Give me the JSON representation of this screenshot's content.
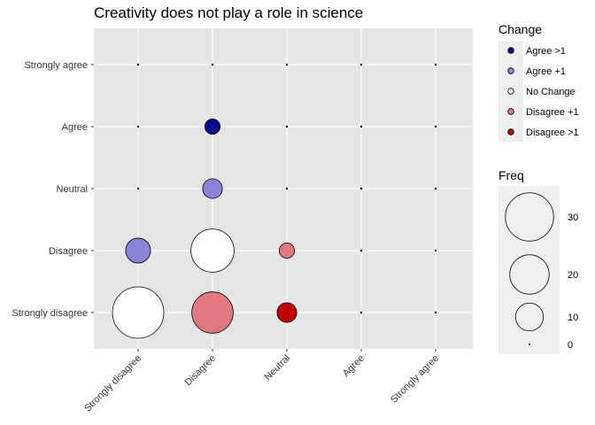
{
  "chart_data": {
    "type": "scatter",
    "title": "Creativity does not play a role in science",
    "xlabel": "",
    "ylabel": "",
    "x_categories": [
      "Strongly disagree",
      "Disagree",
      "Neutral",
      "Agree",
      "Strongly agree"
    ],
    "y_categories": [
      "Strongly disagree",
      "Disagree",
      "Neutral",
      "Agree",
      "Strongly agree"
    ],
    "grid": true,
    "background": "#e5e5e5",
    "points": [
      {
        "x": "Strongly disagree",
        "y": "Strongly disagree",
        "freq": 34,
        "change": "No Change"
      },
      {
        "x": "Strongly disagree",
        "y": "Disagree",
        "freq": 8,
        "change": "Agree +1"
      },
      {
        "x": "Strongly disagree",
        "y": "Neutral",
        "freq": 0,
        "change": "Agree >1"
      },
      {
        "x": "Strongly disagree",
        "y": "Agree",
        "freq": 0,
        "change": "Agree >1"
      },
      {
        "x": "Strongly disagree",
        "y": "Strongly agree",
        "freq": 0,
        "change": "Agree >1"
      },
      {
        "x": "Disagree",
        "y": "Strongly disagree",
        "freq": 22,
        "change": "Disagree +1"
      },
      {
        "x": "Disagree",
        "y": "Disagree",
        "freq": 24,
        "change": "No Change"
      },
      {
        "x": "Disagree",
        "y": "Neutral",
        "freq": 5,
        "change": "Agree +1"
      },
      {
        "x": "Disagree",
        "y": "Agree",
        "freq": 3,
        "change": "Agree >1"
      },
      {
        "x": "Disagree",
        "y": "Strongly agree",
        "freq": 0,
        "change": "Agree >1"
      },
      {
        "x": "Neutral",
        "y": "Strongly disagree",
        "freq": 5,
        "change": "Disagree >1"
      },
      {
        "x": "Neutral",
        "y": "Disagree",
        "freq": 3,
        "change": "Disagree +1"
      },
      {
        "x": "Neutral",
        "y": "Neutral",
        "freq": 0,
        "change": "No Change"
      },
      {
        "x": "Neutral",
        "y": "Agree",
        "freq": 0,
        "change": "Agree +1"
      },
      {
        "x": "Neutral",
        "y": "Strongly agree",
        "freq": 0,
        "change": "Agree >1"
      },
      {
        "x": "Agree",
        "y": "Strongly disagree",
        "freq": 0,
        "change": "Disagree >1"
      },
      {
        "x": "Agree",
        "y": "Disagree",
        "freq": 0,
        "change": "Disagree >1"
      },
      {
        "x": "Agree",
        "y": "Neutral",
        "freq": 0,
        "change": "Disagree +1"
      },
      {
        "x": "Agree",
        "y": "Agree",
        "freq": 0,
        "change": "No Change"
      },
      {
        "x": "Agree",
        "y": "Strongly agree",
        "freq": 0,
        "change": "Agree +1"
      },
      {
        "x": "Strongly agree",
        "y": "Strongly disagree",
        "freq": 0,
        "change": "Disagree >1"
      },
      {
        "x": "Strongly agree",
        "y": "Disagree",
        "freq": 0,
        "change": "Disagree >1"
      },
      {
        "x": "Strongly agree",
        "y": "Neutral",
        "freq": 0,
        "change": "Disagree >1"
      },
      {
        "x": "Strongly agree",
        "y": "Agree",
        "freq": 0,
        "change": "Disagree +1"
      },
      {
        "x": "Strongly agree",
        "y": "Strongly agree",
        "freq": 0,
        "change": "No Change"
      }
    ],
    "legend_change": {
      "title": "Change",
      "placement": "right",
      "items": [
        {
          "label": "Agree >1",
          "color": "#0a0a8c"
        },
        {
          "label": "Agree +1",
          "color": "#8a84d6"
        },
        {
          "label": "No Change",
          "color": "#ffffff"
        },
        {
          "label": "Disagree +1",
          "color": "#e07a80"
        },
        {
          "label": "Disagree >1",
          "color": "#c00000"
        }
      ]
    },
    "legend_freq": {
      "title": "Freq",
      "placement": "right",
      "items": [
        {
          "label": "30",
          "value": 30
        },
        {
          "label": "20",
          "value": 20
        },
        {
          "label": "10",
          "value": 10
        },
        {
          "label": "0",
          "value": 0
        }
      ]
    },
    "freq_max": 34
  }
}
